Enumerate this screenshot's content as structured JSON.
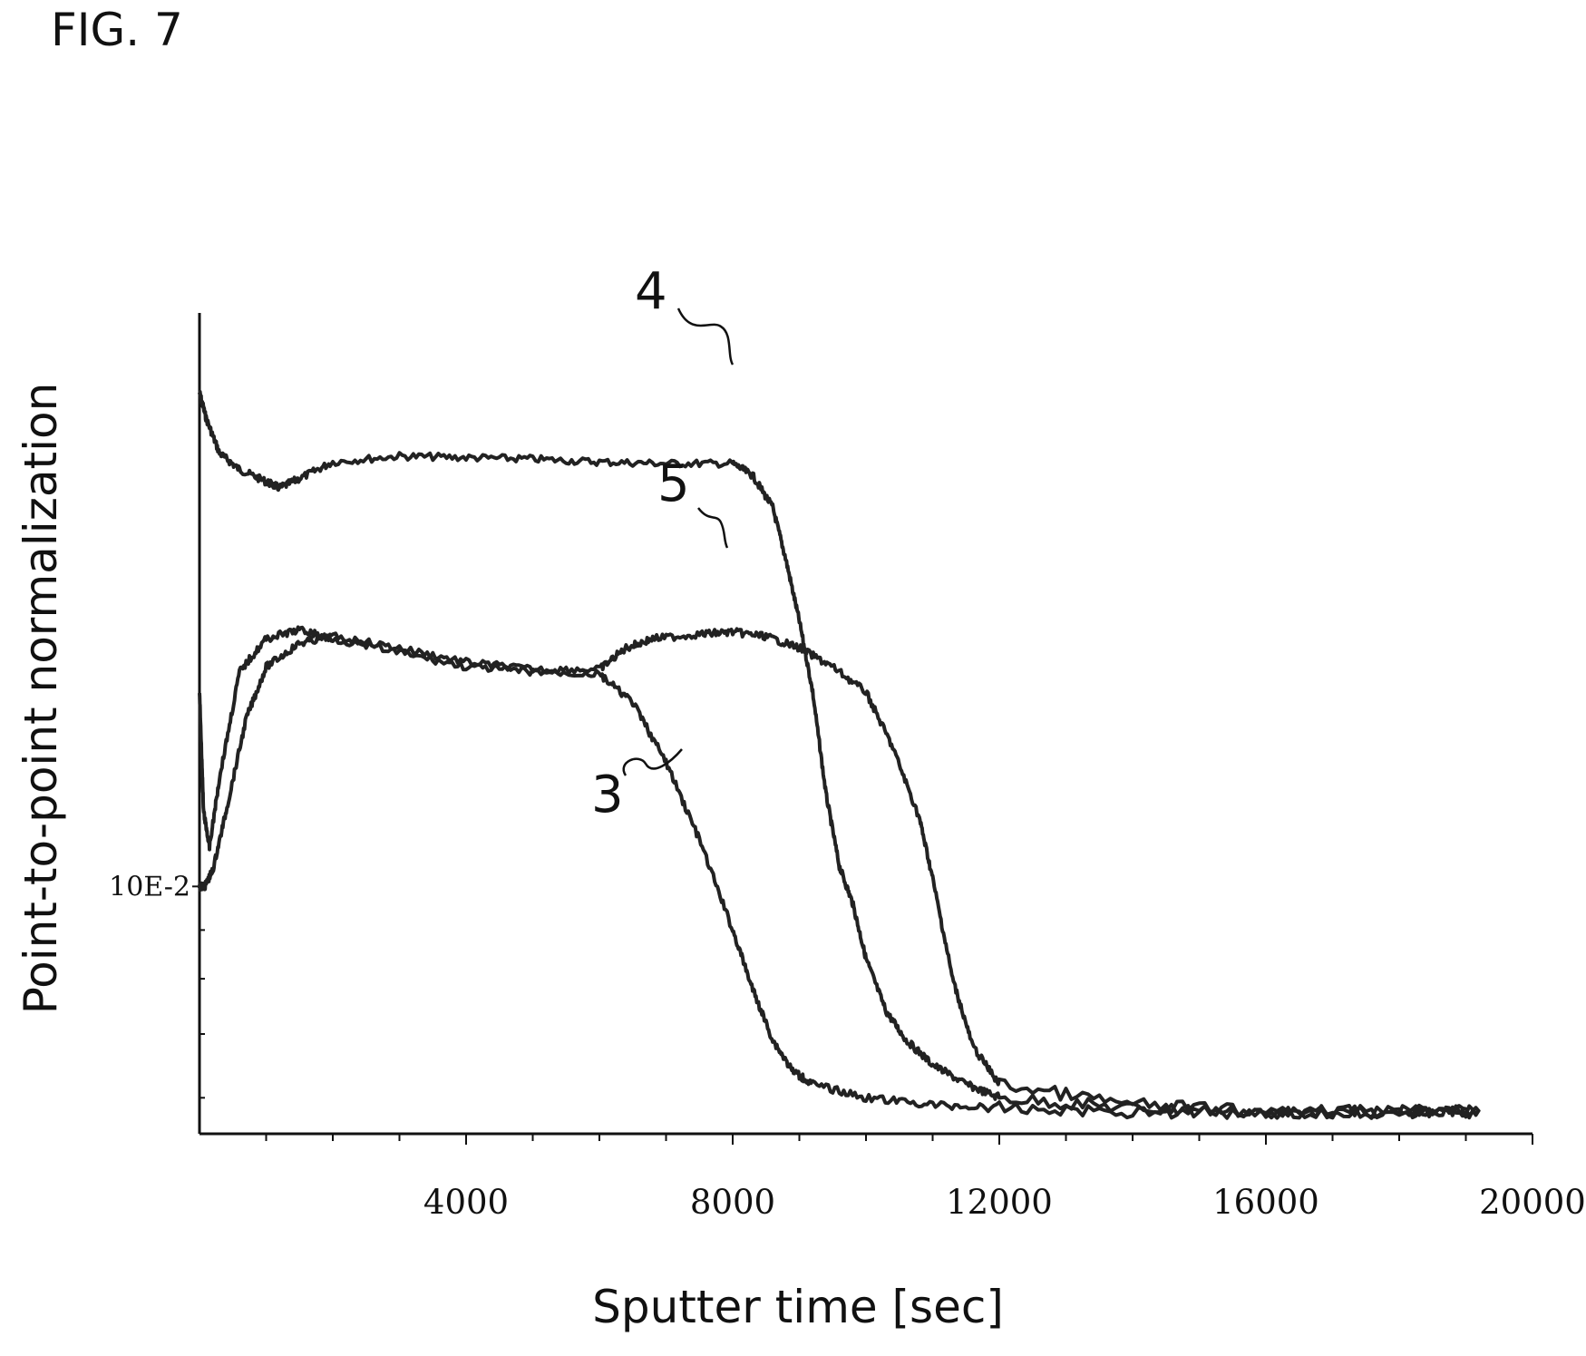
{
  "figure_label": "FIG. 7",
  "chart_data": {
    "type": "line",
    "xlabel": "Sputter time [sec]",
    "ylabel": "Point-to-point normalization",
    "xlim": [
      0,
      20000
    ],
    "ylim": [
      0.055,
      0.4
    ],
    "y_scale": "log",
    "x_ticks": [
      4000,
      8000,
      12000,
      16000,
      20000
    ],
    "y_ticks": [
      {
        "value": 0.1,
        "label": "10E-2"
      }
    ],
    "grid": false,
    "series": [
      {
        "name": "4",
        "x": [
          0,
          100,
          300,
          600,
          1000,
          1200,
          1500,
          2000,
          3000,
          4000,
          5000,
          6000,
          7000,
          8000,
          8300,
          8600,
          8800,
          9000,
          9200,
          9400,
          9600,
          9800,
          10000,
          10300,
          10600,
          11000,
          11500,
          12000,
          14000,
          16000,
          18000,
          19200
        ],
        "y": [
          0.33,
          0.31,
          0.285,
          0.274,
          0.266,
          0.262,
          0.268,
          0.279,
          0.283,
          0.282,
          0.281,
          0.279,
          0.278,
          0.278,
          0.27,
          0.25,
          0.22,
          0.19,
          0.16,
          0.125,
          0.105,
          0.096,
          0.084,
          0.074,
          0.069,
          0.065,
          0.062,
          0.06,
          0.0585,
          0.058,
          0.058,
          0.058
        ]
      },
      {
        "name": "5",
        "x": [
          0,
          80,
          200,
          400,
          700,
          1000,
          1500,
          2000,
          3000,
          4000,
          5000,
          6000,
          6400,
          6800,
          7500,
          8000,
          8500,
          9000,
          9500,
          10000,
          10400,
          10800,
          11000,
          11300,
          11600,
          12000,
          14000,
          16000,
          18000,
          19200
        ],
        "y": [
          0.1,
          0.1,
          0.104,
          0.12,
          0.15,
          0.17,
          0.18,
          0.183,
          0.178,
          0.172,
          0.169,
          0.169,
          0.178,
          0.182,
          0.184,
          0.185,
          0.183,
          0.178,
          0.17,
          0.16,
          0.14,
          0.118,
          0.102,
          0.08,
          0.068,
          0.062,
          0.059,
          0.058,
          0.058,
          0.058
        ]
      },
      {
        "name": "3",
        "x": [
          0,
          60,
          150,
          300,
          600,
          1000,
          1500,
          2000,
          3000,
          4000,
          5000,
          6000,
          6500,
          7000,
          7500,
          8000,
          8300,
          8600,
          8900,
          9200,
          10000,
          11000,
          12000,
          14000,
          16000,
          18000,
          19200
        ],
        "y": [
          0.16,
          0.12,
          0.11,
          0.13,
          0.168,
          0.182,
          0.186,
          0.182,
          0.176,
          0.17,
          0.168,
          0.167,
          0.156,
          0.135,
          0.112,
          0.09,
          0.078,
          0.069,
          0.064,
          0.062,
          0.06,
          0.059,
          0.0585,
          0.058,
          0.058,
          0.058,
          0.058
        ]
      }
    ]
  }
}
